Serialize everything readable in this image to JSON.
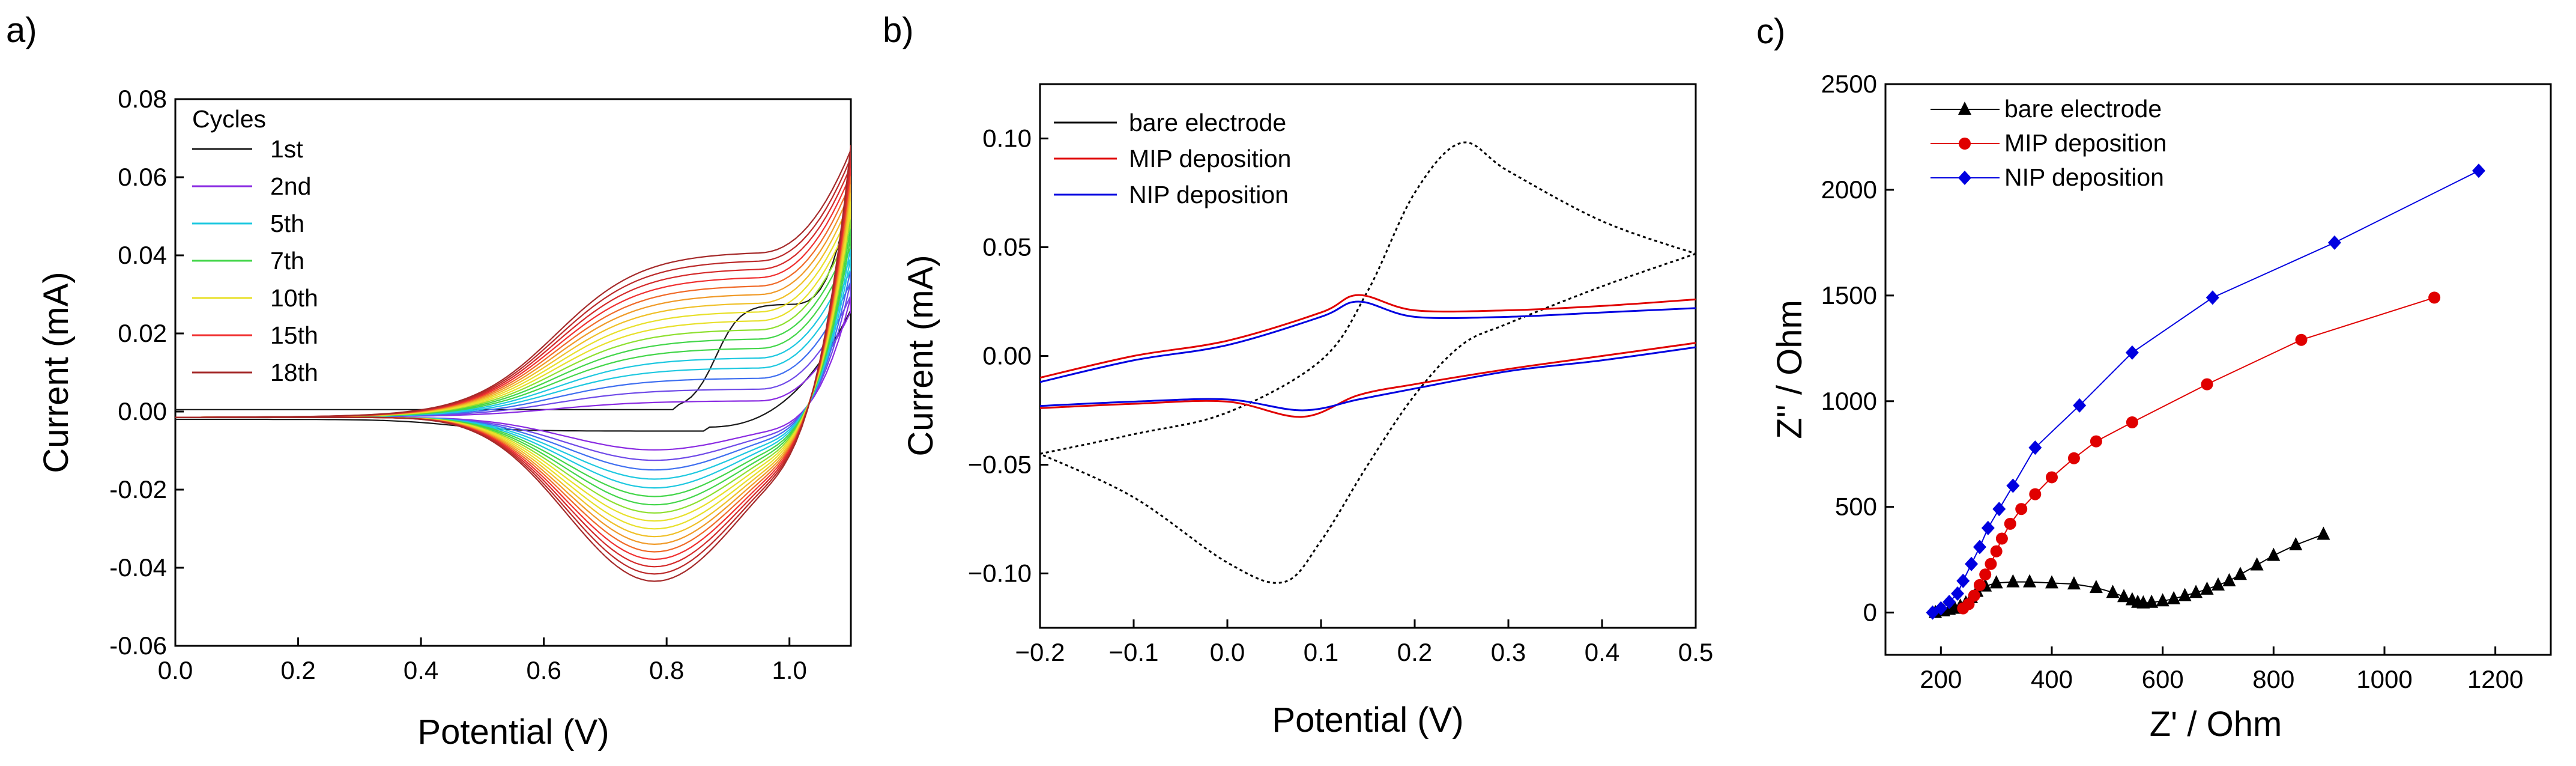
{
  "chart_data": [
    {
      "panel": "a)",
      "type": "line",
      "xlabel": "Potential (V)",
      "ylabel": "Current (mA)",
      "xlim": [
        0.0,
        1.1
      ],
      "ylim": [
        -0.06,
        0.08
      ],
      "xticks": [
        "0.0",
        "0.2",
        "0.4",
        "0.6",
        "0.8",
        "1.0"
      ],
      "yticks": [
        "-0.06",
        "-0.04",
        "-0.02",
        "0.00",
        "0.02",
        "0.04",
        "0.06",
        "0.08"
      ],
      "legend_title": "Cycles",
      "legend_position": "top-left",
      "series": [
        {
          "name": "1st",
          "color": "#1a1a1a",
          "cycle": 1
        },
        {
          "name": "2nd",
          "color": "#8a2be2",
          "cycle": 2
        },
        {
          "name": "5th",
          "color": "#1ec8e0",
          "cycle": 5
        },
        {
          "name": "7th",
          "color": "#43d64a",
          "cycle": 7
        },
        {
          "name": "10th",
          "color": "#e8e02a",
          "cycle": 10
        },
        {
          "name": "15th",
          "color": "#f03030",
          "cycle": 15
        },
        {
          "name": "18th",
          "color": "#a52a2a",
          "cycle": 18
        }
      ],
      "oxidation_peak_approx": {
        "x": 0.8,
        "y_first": 0.0,
        "y_last": 0.042
      },
      "reduction_peak_approx": {
        "x": 0.8,
        "y_first": -0.005,
        "y_last": -0.042
      },
      "end_current_approx": 0.068
    },
    {
      "panel": "b)",
      "type": "line",
      "xlabel": "Potential (V)",
      "ylabel": "Current (mA)",
      "xlim": [
        -0.2,
        0.5
      ],
      "ylim": [
        -0.125,
        0.125
      ],
      "xticks": [
        "−0.2",
        "−0.1",
        "0.0",
        "0.1",
        "0.2",
        "0.3",
        "0.4",
        "0.5"
      ],
      "yticks": [
        "−0.10",
        "−0.05",
        "0.00",
        "0.05",
        "0.10"
      ],
      "legend_position": "top-left",
      "series": [
        {
          "name": "bare electrode",
          "color": "#000000",
          "style": "dashed",
          "forward": {
            "x": [
              -0.2,
              -0.1,
              0.0,
              0.1,
              0.15,
              0.2,
              0.25,
              0.3,
              0.4,
              0.5
            ],
            "y": [
              -0.045,
              -0.036,
              -0.026,
              -0.002,
              0.03,
              0.075,
              0.098,
              0.085,
              0.062,
              0.047
            ]
          },
          "reverse": {
            "x": [
              0.5,
              0.4,
              0.3,
              0.25,
              0.2,
              0.15,
              0.1,
              0.06,
              0.0,
              -0.1,
              -0.2
            ],
            "y": [
              0.047,
              0.032,
              0.015,
              0.005,
              -0.018,
              -0.05,
              -0.085,
              -0.104,
              -0.095,
              -0.065,
              -0.045
            ]
          }
        },
        {
          "name": "MIP deposition",
          "color": "#e00000",
          "style": "solid",
          "forward": {
            "x": [
              -0.2,
              -0.1,
              0.0,
              0.1,
              0.14,
              0.2,
              0.3,
              0.4,
              0.5
            ],
            "y": [
              -0.01,
              0.0,
              0.007,
              0.02,
              0.028,
              0.021,
              0.021,
              0.023,
              0.026
            ]
          },
          "reverse": {
            "x": [
              0.5,
              0.4,
              0.3,
              0.2,
              0.14,
              0.08,
              0.0,
              -0.1,
              -0.2
            ],
            "y": [
              0.006,
              0.0,
              -0.006,
              -0.013,
              -0.018,
              -0.028,
              -0.021,
              -0.022,
              -0.024
            ]
          }
        },
        {
          "name": "NIP deposition",
          "color": "#0000e0",
          "style": "solid",
          "forward": {
            "x": [
              -0.2,
              -0.1,
              0.0,
              0.1,
              0.14,
              0.2,
              0.3,
              0.4,
              0.5
            ],
            "y": [
              -0.012,
              -0.002,
              0.005,
              0.018,
              0.025,
              0.018,
              0.018,
              0.02,
              0.022
            ]
          },
          "reverse": {
            "x": [
              0.5,
              0.4,
              0.3,
              0.2,
              0.14,
              0.08,
              0.0,
              -0.1,
              -0.2
            ],
            "y": [
              0.004,
              -0.002,
              -0.007,
              -0.015,
              -0.02,
              -0.025,
              -0.02,
              -0.021,
              -0.023
            ]
          }
        }
      ]
    },
    {
      "panel": "c)",
      "type": "scatter",
      "xlabel": "Z' / Ohm",
      "ylabel": "Z'' / Ohm",
      "xlim": [
        100,
        1300
      ],
      "ylim": [
        -200,
        2500
      ],
      "xticks": [
        "200",
        "400",
        "600",
        "800",
        "1000",
        "1200"
      ],
      "yticks": [
        "0",
        "500",
        "1000",
        "1500",
        "2000",
        "2500"
      ],
      "legend_position": "top-left",
      "series": [
        {
          "name": "bare electrode",
          "color": "#000000",
          "marker": "triangle",
          "x": [
            190,
            205,
            215,
            225,
            235,
            245,
            255,
            265,
            280,
            300,
            330,
            360,
            400,
            440,
            480,
            510,
            530,
            545,
            555,
            565,
            580,
            600,
            620,
            640,
            660,
            680,
            700,
            720,
            740,
            770,
            800,
            840,
            890
          ],
          "y": [
            0,
            8,
            15,
            20,
            30,
            45,
            70,
            100,
            125,
            140,
            145,
            145,
            140,
            135,
            118,
            95,
            75,
            60,
            48,
            45,
            48,
            55,
            65,
            80,
            95,
            110,
            130,
            150,
            180,
            225,
            270,
            320,
            370
          ]
        },
        {
          "name": "MIP deposition",
          "color": "#e00000",
          "marker": "circle",
          "x": [
            240,
            250,
            260,
            270,
            280,
            290,
            300,
            310,
            325,
            345,
            370,
            400,
            440,
            480,
            545,
            680,
            850,
            1090
          ],
          "y": [
            20,
            40,
            80,
            130,
            180,
            230,
            290,
            350,
            420,
            490,
            560,
            640,
            730,
            810,
            900,
            1080,
            1290,
            1490
          ]
        },
        {
          "name": "NIP deposition",
          "color": "#0000e0",
          "marker": "diamond",
          "x": [
            185,
            200,
            215,
            230,
            240,
            255,
            270,
            285,
            305,
            330,
            370,
            450,
            545,
            690,
            910,
            1170
          ],
          "y": [
            0,
            20,
            50,
            90,
            150,
            230,
            310,
            400,
            490,
            600,
            780,
            980,
            1230,
            1490,
            1750,
            2090
          ]
        }
      ]
    }
  ]
}
